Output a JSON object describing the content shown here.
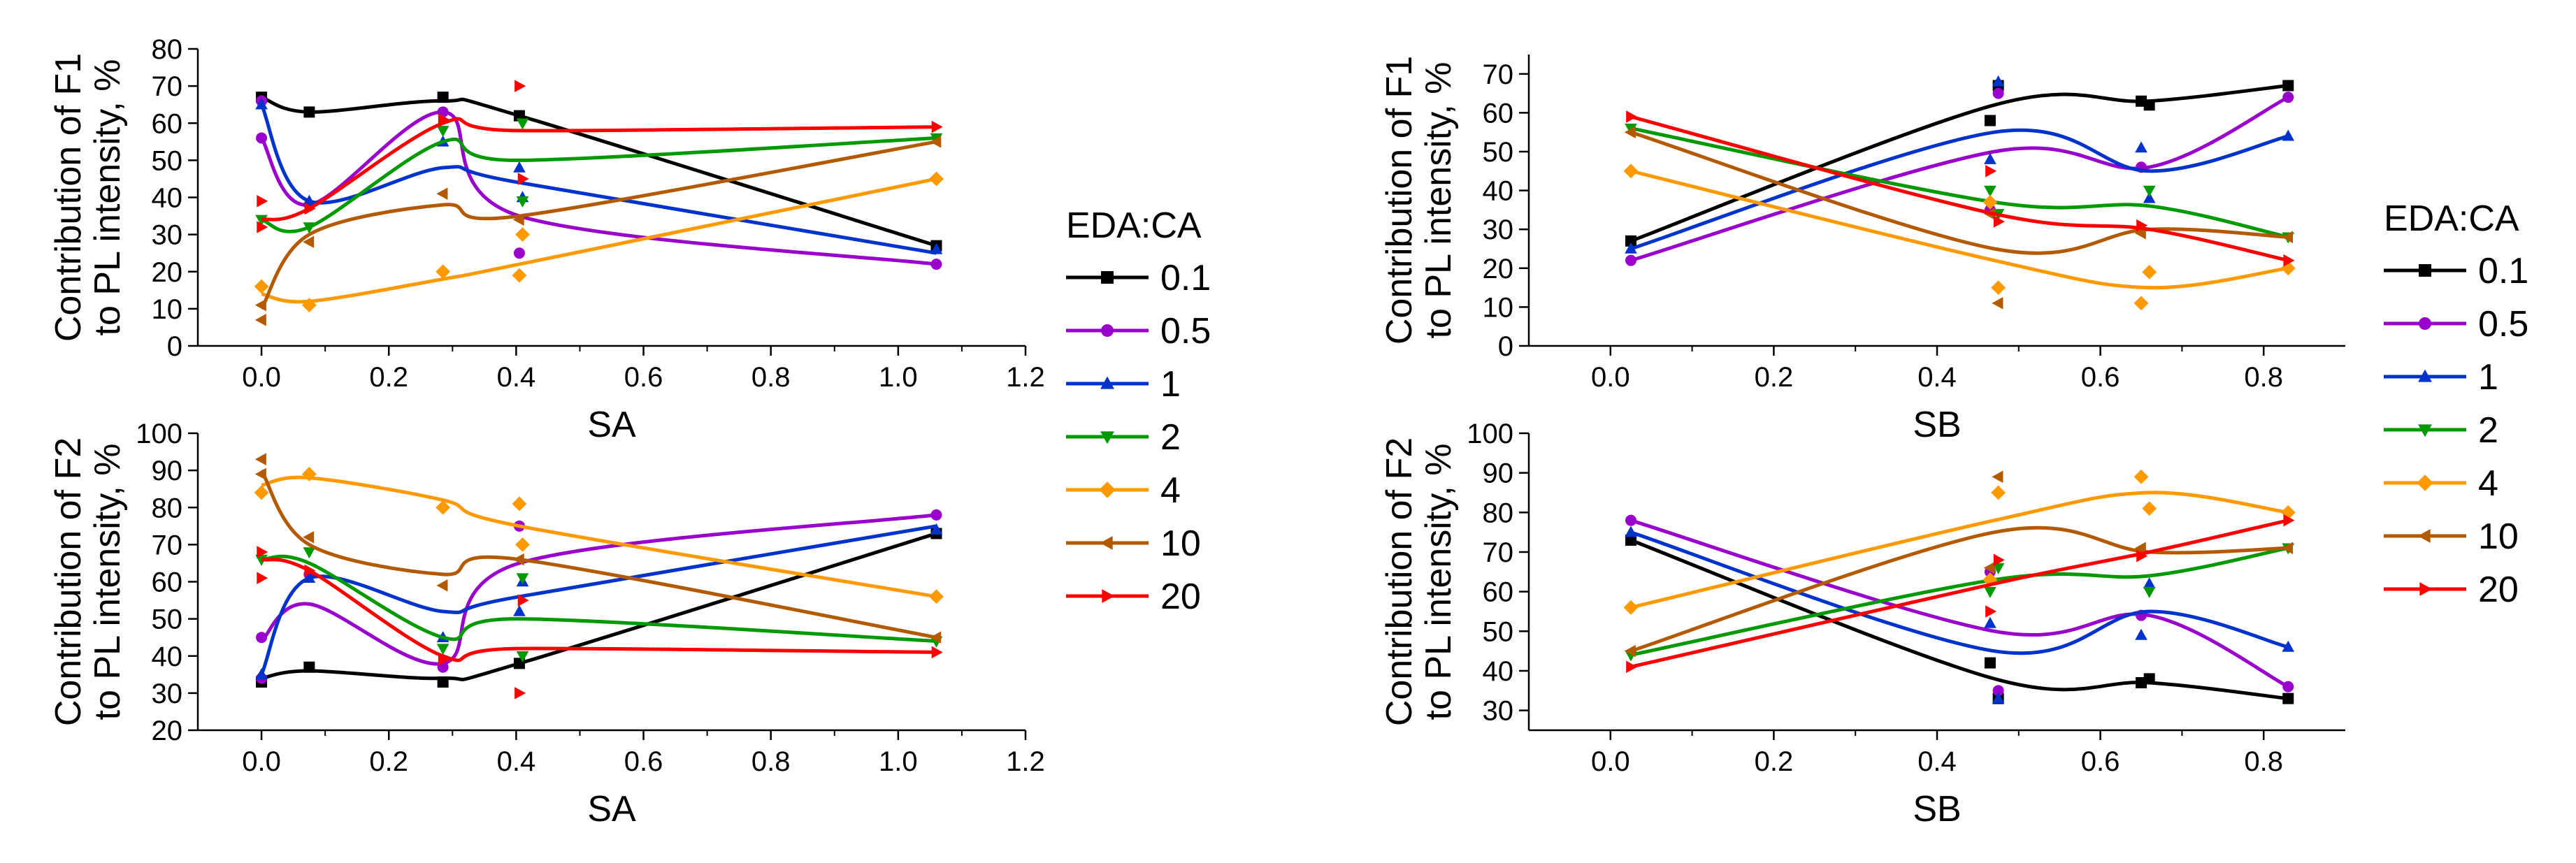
{
  "legend": {
    "title": "EDA:CA",
    "entries": [
      "0.1",
      "0.5",
      "1",
      "2",
      "4",
      "10",
      "20"
    ]
  },
  "series_styles": [
    {
      "name": "0.1",
      "color": "#000000",
      "marker": "square"
    },
    {
      "name": "0.5",
      "color": "#9900cc",
      "marker": "circle"
    },
    {
      "name": "1",
      "color": "#0033cc",
      "marker": "triangle-up"
    },
    {
      "name": "2",
      "color": "#009900",
      "marker": "triangle-down"
    },
    {
      "name": "4",
      "color": "#ff9900",
      "marker": "diamond"
    },
    {
      "name": "10",
      "color": "#b35900",
      "marker": "triangle-left"
    },
    {
      "name": "20",
      "color": "#ff0000",
      "marker": "triangle-right"
    }
  ],
  "chart_data": [
    {
      "id": "f1-vs-sa",
      "type": "line",
      "xlabel": "SA",
      "ylabel_lines": [
        "Contribution of F1",
        "to PL intensity, %"
      ],
      "xlim": [
        -0.1,
        1.2
      ],
      "ylim": [
        0,
        80
      ],
      "xticks": [
        "0.0",
        "0.2",
        "0.4",
        "0.6",
        "0.8",
        "1.0",
        "1.2"
      ],
      "xtick_values": [
        0,
        0.2,
        0.4,
        0.6,
        0.8,
        1.0,
        1.2
      ],
      "yticks": [
        "0",
        "10",
        "20",
        "30",
        "40",
        "50",
        "60",
        "70",
        "80"
      ],
      "ytick_values": [
        0,
        10,
        20,
        30,
        40,
        50,
        60,
        70,
        80
      ],
      "series": [
        {
          "name": "0.1",
          "x": [
            0,
            0.075,
            0.285,
            0.405,
            1.06
          ],
          "y": [
            67,
            63,
            66,
            62,
            27
          ],
          "points_x": [
            0,
            0.075,
            0.285,
            0.405,
            1.06
          ],
          "points_y": [
            67,
            63,
            67,
            62,
            27
          ]
        },
        {
          "name": "0.5",
          "x": [
            0,
            0.075,
            0.285,
            0.405,
            1.06
          ],
          "y": [
            56,
            38,
            63,
            35,
            22
          ],
          "points_x": [
            0,
            0,
            0.075,
            0.285,
            0.405,
            1.06
          ],
          "points_y": [
            56,
            66,
            38,
            63,
            25,
            22
          ]
        },
        {
          "name": "1",
          "x": [
            0,
            0.075,
            0.285,
            0.405,
            1.06
          ],
          "y": [
            65,
            39,
            48,
            44,
            25
          ],
          "points_x": [
            0,
            0.075,
            0.285,
            0.405,
            0.41,
            1.06
          ],
          "points_y": [
            65,
            39,
            55,
            48,
            40,
            26
          ]
        },
        {
          "name": "2",
          "x": [
            0,
            0.075,
            0.285,
            0.405,
            1.06
          ],
          "y": [
            34,
            32,
            55,
            50,
            56
          ],
          "points_x": [
            0,
            0.075,
            0.285,
            0.41,
            0.41,
            1.06
          ],
          "points_y": [
            34,
            32,
            58,
            39,
            60,
            56
          ]
        },
        {
          "name": "4",
          "x": [
            0,
            0.075,
            0.285,
            0.405,
            1.06
          ],
          "y": [
            14,
            12,
            18,
            22,
            45
          ],
          "points_x": [
            0,
            0.075,
            0.285,
            0.405,
            0.41,
            1.06
          ],
          "points_y": [
            16,
            11,
            20,
            19,
            30,
            45
          ]
        },
        {
          "name": "10",
          "x": [
            0,
            0.075,
            0.285,
            0.405,
            1.06
          ],
          "y": [
            10,
            30,
            38,
            35,
            55
          ],
          "points_x": [
            0,
            0,
            0.075,
            0.285,
            0.405,
            1.06
          ],
          "points_y": [
            7,
            11,
            28,
            41,
            34,
            55
          ]
        },
        {
          "name": "20",
          "x": [
            0,
            0.075,
            0.285,
            0.405,
            1.06
          ],
          "y": [
            34,
            37,
            60,
            58,
            59
          ],
          "points_x": [
            0,
            0,
            0.075,
            0.285,
            0.405,
            0.41,
            1.06
          ],
          "points_y": [
            32,
            39,
            37,
            61,
            70,
            45,
            59
          ]
        }
      ]
    },
    {
      "id": "f2-vs-sa",
      "type": "line",
      "xlabel": "SA",
      "ylabel_lines": [
        "Contribution of F2",
        "to PL intensity, %"
      ],
      "xlim": [
        -0.1,
        1.2
      ],
      "ylim": [
        20,
        100
      ],
      "xticks": [
        "0.0",
        "0.2",
        "0.4",
        "0.6",
        "0.8",
        "1.0",
        "1.2"
      ],
      "xtick_values": [
        0,
        0.2,
        0.4,
        0.6,
        0.8,
        1.0,
        1.2
      ],
      "yticks": [
        "20",
        "30",
        "40",
        "50",
        "60",
        "70",
        "80",
        "90",
        "100"
      ],
      "ytick_values": [
        20,
        30,
        40,
        50,
        60,
        70,
        80,
        90,
        100
      ],
      "series": [
        {
          "name": "0.1",
          "x": [
            0,
            0.075,
            0.285,
            0.405,
            1.06
          ],
          "y": [
            34,
            36,
            34,
            38,
            73
          ],
          "points_x": [
            0,
            0.075,
            0.285,
            0.405,
            1.06
          ],
          "points_y": [
            33,
            37,
            33,
            38,
            73
          ]
        },
        {
          "name": "0.5",
          "x": [
            0,
            0.075,
            0.285,
            0.405,
            1.06
          ],
          "y": [
            44,
            54,
            38,
            65,
            78
          ],
          "points_x": [
            0,
            0,
            0.075,
            0.285,
            0.405,
            1.06
          ],
          "points_y": [
            34,
            45,
            62,
            37,
            75,
            78
          ]
        },
        {
          "name": "1",
          "x": [
            0,
            0.075,
            0.285,
            0.405,
            1.06
          ],
          "y": [
            35,
            61,
            52,
            56,
            75
          ],
          "points_x": [
            0,
            0.075,
            0.285,
            0.405,
            0.41,
            1.06
          ],
          "points_y": [
            35,
            61,
            45,
            52,
            60,
            74
          ]
        },
        {
          "name": "2",
          "x": [
            0,
            0.075,
            0.285,
            0.405,
            1.06
          ],
          "y": [
            66,
            65,
            45,
            50,
            44
          ],
          "points_x": [
            0,
            0.075,
            0.285,
            0.41,
            0.41,
            1.06
          ],
          "points_y": [
            66,
            68,
            42,
            61,
            40,
            44
          ]
        },
        {
          "name": "4",
          "x": [
            0,
            0.075,
            0.285,
            0.405,
            1.06
          ],
          "y": [
            86,
            88,
            82,
            75,
            56
          ],
          "points_x": [
            0,
            0.075,
            0.285,
            0.405,
            0.41,
            1.06
          ],
          "points_y": [
            84,
            89,
            80,
            81,
            70,
            56
          ]
        },
        {
          "name": "10",
          "x": [
            0,
            0.075,
            0.285,
            0.405,
            1.06
          ],
          "y": [
            90,
            70,
            62,
            66,
            45
          ],
          "points_x": [
            0,
            0,
            0.075,
            0.285,
            0.405,
            1.06
          ],
          "points_y": [
            89,
            93,
            72,
            59,
            66,
            45
          ]
        },
        {
          "name": "20",
          "x": [
            0,
            0.075,
            0.285,
            0.405,
            1.06
          ],
          "y": [
            66,
            63,
            40,
            42,
            41
          ],
          "points_x": [
            0,
            0,
            0.075,
            0.285,
            0.405,
            0.41,
            1.06
          ],
          "points_y": [
            61,
            68,
            63,
            39,
            30,
            55,
            41
          ]
        }
      ]
    },
    {
      "id": "f1-vs-sb",
      "type": "line",
      "xlabel": "SB",
      "ylabel_lines": [
        "Contribution of F1",
        "to PL intensity, %"
      ],
      "xlim": [
        -0.1,
        0.9
      ],
      "ylim": [
        0,
        75
      ],
      "xticks": [
        "0.0",
        "0.2",
        "0.4",
        "0.6",
        "0.8"
      ],
      "xtick_values": [
        0,
        0.2,
        0.4,
        0.6,
        0.8
      ],
      "yticks": [
        "0",
        "10",
        "20",
        "30",
        "40",
        "50",
        "60",
        "70"
      ],
      "ytick_values": [
        0,
        10,
        20,
        30,
        40,
        50,
        60,
        70
      ],
      "series": [
        {
          "name": "0.1",
          "x": [
            0.025,
            0.47,
            0.66,
            0.83
          ],
          "y": [
            27,
            62,
            63,
            67
          ],
          "points_x": [
            0.025,
            0.465,
            0.475,
            0.65,
            0.66,
            0.83
          ],
          "points_y": [
            27,
            58,
            67,
            63,
            62,
            67
          ]
        },
        {
          "name": "0.5",
          "x": [
            0.025,
            0.47,
            0.66,
            0.83
          ],
          "y": [
            22,
            50,
            46,
            64
          ],
          "points_x": [
            0.025,
            0.465,
            0.475,
            0.65,
            0.83
          ],
          "points_y": [
            22,
            35,
            65,
            46,
            64
          ]
        },
        {
          "name": "1",
          "x": [
            0.025,
            0.47,
            0.66,
            0.83
          ],
          "y": [
            25,
            55,
            45,
            54
          ],
          "points_x": [
            0.025,
            0.465,
            0.475,
            0.65,
            0.66,
            0.83
          ],
          "points_y": [
            25,
            48,
            68,
            51,
            38,
            54
          ]
        },
        {
          "name": "2",
          "x": [
            0.025,
            0.47,
            0.66,
            0.83
          ],
          "y": [
            56,
            37,
            36,
            28
          ],
          "points_x": [
            0.025,
            0.465,
            0.475,
            0.66,
            0.83
          ],
          "points_y": [
            56,
            40,
            34,
            40,
            28
          ]
        },
        {
          "name": "4",
          "x": [
            0.025,
            0.47,
            0.66,
            0.83
          ],
          "y": [
            45,
            22,
            15,
            20
          ],
          "points_x": [
            0.025,
            0.465,
            0.475,
            0.65,
            0.66,
            0.83
          ],
          "points_y": [
            45,
            37,
            15,
            11,
            19,
            20
          ]
        },
        {
          "name": "10",
          "x": [
            0.025,
            0.47,
            0.66,
            0.83
          ],
          "y": [
            55,
            25,
            30,
            28
          ],
          "points_x": [
            0.025,
            0.465,
            0.475,
            0.65,
            0.83
          ],
          "points_y": [
            55,
            34,
            11,
            29,
            28
          ]
        },
        {
          "name": "20",
          "x": [
            0.025,
            0.47,
            0.66,
            0.83
          ],
          "y": [
            59,
            34,
            30,
            22
          ],
          "points_x": [
            0.025,
            0.465,
            0.475,
            0.65,
            0.83
          ],
          "points_y": [
            59,
            45,
            32,
            31,
            22
          ]
        }
      ]
    },
    {
      "id": "f2-vs-sb",
      "type": "line",
      "xlabel": "SB",
      "ylabel_lines": [
        "Contribution of F2",
        "to PL intensity, %"
      ],
      "xlim": [
        -0.1,
        0.9
      ],
      "ylim": [
        25,
        100
      ],
      "xticks": [
        "0.0",
        "0.2",
        "0.4",
        "0.6",
        "0.8"
      ],
      "xtick_values": [
        0,
        0.2,
        0.4,
        0.6,
        0.8
      ],
      "yticks": [
        "30",
        "40",
        "50",
        "60",
        "70",
        "80",
        "90",
        "100"
      ],
      "ytick_values": [
        30,
        40,
        50,
        60,
        70,
        80,
        90,
        100
      ],
      "series": [
        {
          "name": "0.1",
          "x": [
            0.025,
            0.47,
            0.66,
            0.83
          ],
          "y": [
            73,
            38,
            37,
            33
          ],
          "points_x": [
            0.025,
            0.465,
            0.475,
            0.65,
            0.66,
            0.83
          ],
          "points_y": [
            73,
            42,
            33,
            37,
            38,
            33
          ]
        },
        {
          "name": "0.5",
          "x": [
            0.025,
            0.47,
            0.66,
            0.83
          ],
          "y": [
            78,
            50,
            54,
            36
          ],
          "points_x": [
            0.025,
            0.465,
            0.475,
            0.65,
            0.83
          ],
          "points_y": [
            78,
            65,
            35,
            54,
            36
          ]
        },
        {
          "name": "1",
          "x": [
            0.025,
            0.47,
            0.66,
            0.83
          ],
          "y": [
            75,
            45,
            55,
            46
          ],
          "points_x": [
            0.025,
            0.465,
            0.475,
            0.65,
            0.66,
            0.83
          ],
          "points_y": [
            75,
            52,
            33,
            49,
            62,
            46
          ]
        },
        {
          "name": "2",
          "x": [
            0.025,
            0.47,
            0.66,
            0.83
          ],
          "y": [
            44,
            63,
            64,
            71
          ],
          "points_x": [
            0.025,
            0.465,
            0.475,
            0.66,
            0.83
          ],
          "points_y": [
            44,
            60,
            66,
            60,
            71
          ]
        },
        {
          "name": "4",
          "x": [
            0.025,
            0.47,
            0.66,
            0.83
          ],
          "y": [
            56,
            78,
            85,
            80
          ],
          "points_x": [
            0.025,
            0.465,
            0.475,
            0.65,
            0.66,
            0.83
          ],
          "points_y": [
            56,
            63,
            85,
            89,
            81,
            80
          ]
        },
        {
          "name": "10",
          "x": [
            0.025,
            0.47,
            0.66,
            0.83
          ],
          "y": [
            45,
            75,
            70,
            71
          ],
          "points_x": [
            0.025,
            0.465,
            0.475,
            0.65,
            0.83
          ],
          "points_y": [
            45,
            66,
            89,
            71,
            71
          ]
        },
        {
          "name": "20",
          "x": [
            0.025,
            0.47,
            0.66,
            0.83
          ],
          "y": [
            41,
            62,
            70,
            78
          ],
          "points_x": [
            0.025,
            0.465,
            0.475,
            0.65,
            0.83
          ],
          "points_y": [
            41,
            55,
            68,
            69,
            78
          ]
        }
      ]
    }
  ]
}
